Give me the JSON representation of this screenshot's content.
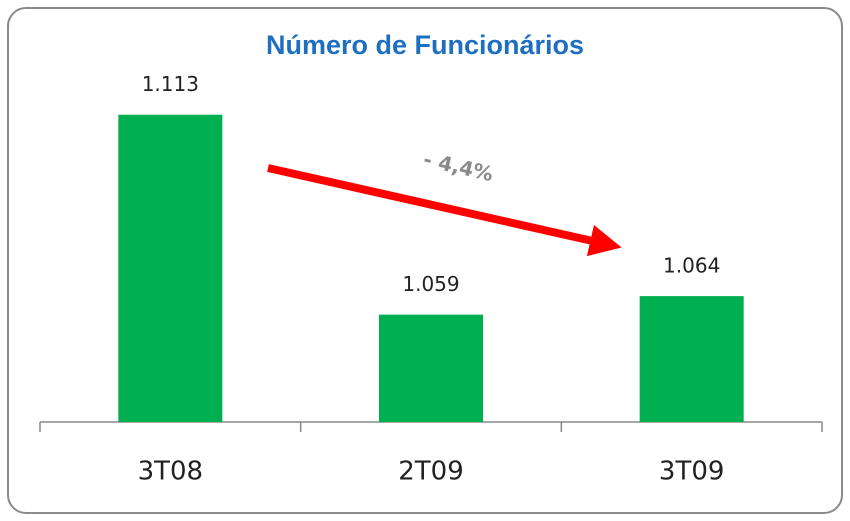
{
  "chart_data": {
    "type": "bar",
    "title": "Número de Funcionários",
    "categories": [
      "3T08",
      "2T09",
      "3T09"
    ],
    "values": [
      1113,
      1059,
      1064
    ],
    "value_labels": [
      "1.113",
      "1.059",
      "1.064"
    ],
    "color": "#00b050",
    "ylim": [
      1030,
      1124
    ],
    "annotation": "- 4,4%"
  }
}
